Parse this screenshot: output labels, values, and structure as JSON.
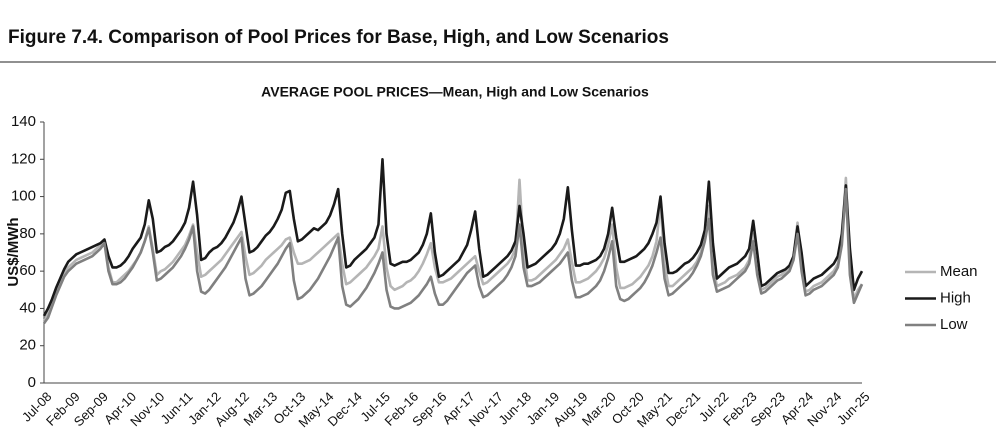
{
  "header": {
    "title": "Figure 7.4. Comparison of Pool Prices for Base, High, and Low Scenarios"
  },
  "chart_data": {
    "type": "line",
    "title": "AVERAGE POOL PRICES—Mean, High and Low Scenarios",
    "y_label": "US$/MWh",
    "categories": [
      "Jul-08",
      null,
      null,
      null,
      null,
      null,
      null,
      "Feb-09",
      null,
      null,
      null,
      null,
      null,
      null,
      "Sep-09",
      null,
      null,
      null,
      null,
      null,
      null,
      "Apr-10",
      null,
      null,
      null,
      null,
      null,
      null,
      "Nov-10",
      null,
      null,
      null,
      null,
      null,
      null,
      "Jun-11",
      null,
      null,
      null,
      null,
      null,
      null,
      "Jan-12",
      null,
      null,
      null,
      null,
      null,
      null,
      "Aug-12",
      null,
      null,
      null,
      null,
      null,
      null,
      "Mar-13",
      null,
      null,
      null,
      null,
      null,
      null,
      "Oct-13",
      null,
      null,
      null,
      null,
      null,
      null,
      "May-14",
      null,
      null,
      null,
      null,
      null,
      null,
      "Dec-14",
      null,
      null,
      null,
      null,
      null,
      null,
      "Jul-15",
      null,
      null,
      null,
      null,
      null,
      null,
      "Feb-16",
      null,
      null,
      null,
      null,
      null,
      null,
      "Sep-16",
      null,
      null,
      null,
      null,
      null,
      null,
      "Apr-17",
      null,
      null,
      null,
      null,
      null,
      null,
      "Nov-17",
      null,
      null,
      null,
      null,
      null,
      null,
      "Jun-18",
      null,
      null,
      null,
      null,
      null,
      null,
      "Jan-19",
      null,
      null,
      null,
      null,
      null,
      null,
      "Aug-19",
      null,
      null,
      null,
      null,
      null,
      null,
      "Mar-20",
      null,
      null,
      null,
      null,
      null,
      null,
      "Oct-20",
      null,
      null,
      null,
      null,
      null,
      null,
      "May-21",
      null,
      null,
      null,
      null,
      null,
      null,
      "Dec-21",
      null,
      null,
      null,
      null,
      null,
      null,
      "Jul-22",
      null,
      null,
      null,
      null,
      null,
      null,
      "Feb-23",
      null,
      null,
      null,
      null,
      null,
      null,
      "Sep-23",
      null,
      null,
      null,
      null,
      null,
      null,
      "Apr-24",
      null,
      null,
      null,
      null,
      null,
      null,
      "Nov-24",
      null,
      null,
      null,
      null,
      null,
      null,
      "Jun-25"
    ],
    "series": [
      {
        "name": "Mean",
        "color": "#b5b5b5",
        "values": [
          33,
          37,
          43,
          49,
          54,
          59,
          62,
          64,
          66,
          67,
          68,
          69,
          70,
          72,
          74,
          76,
          62,
          54,
          54,
          56,
          58,
          60,
          63,
          66,
          70,
          76,
          84,
          72,
          58,
          60,
          61,
          63,
          65,
          68,
          71,
          74,
          79,
          85,
          70,
          57,
          58,
          60,
          62,
          64,
          66,
          69,
          72,
          75,
          78,
          81,
          68,
          58,
          59,
          61,
          63,
          66,
          68,
          70,
          72,
          74,
          77,
          78,
          70,
          64,
          64,
          65,
          66,
          68,
          70,
          72,
          74,
          76,
          78,
          80,
          64,
          53,
          54,
          56,
          58,
          60,
          62,
          65,
          68,
          72,
          84,
          62,
          52,
          50,
          51,
          52,
          54,
          55,
          57,
          60,
          64,
          69,
          75,
          62,
          54,
          54,
          55,
          56,
          58,
          60,
          62,
          64,
          66,
          68,
          60,
          53,
          54,
          56,
          58,
          60,
          62,
          64,
          67,
          72,
          109,
          72,
          55,
          55,
          56,
          58,
          60,
          62,
          64,
          66,
          69,
          72,
          77,
          65,
          54,
          54,
          55,
          56,
          58,
          60,
          63,
          67,
          74,
          85,
          62,
          51,
          51,
          52,
          53,
          55,
          57,
          60,
          63,
          68,
          76,
          97,
          64,
          52,
          52,
          54,
          56,
          58,
          60,
          62,
          65,
          70,
          80,
          95,
          62,
          52,
          53,
          54,
          56,
          57,
          58,
          60,
          62,
          66,
          80,
          62,
          50,
          51,
          53,
          55,
          57,
          58,
          60,
          62,
          68,
          86,
          62,
          49,
          50,
          52,
          53,
          54,
          56,
          58,
          60,
          64,
          76,
          110,
          62,
          45,
          50,
          53
        ]
      },
      {
        "name": "High",
        "color": "#1a1a1a",
        "values": [
          36,
          40,
          45,
          51,
          56,
          61,
          65,
          67,
          69,
          70,
          71,
          72,
          73,
          74,
          75,
          77,
          68,
          62,
          62,
          63,
          65,
          68,
          72,
          75,
          78,
          85,
          98,
          88,
          70,
          71,
          73,
          74,
          76,
          79,
          82,
          86,
          94,
          108,
          90,
          66,
          67,
          70,
          72,
          73,
          75,
          78,
          82,
          86,
          92,
          100,
          85,
          70,
          71,
          73,
          76,
          79,
          81,
          84,
          88,
          93,
          102,
          103,
          88,
          76,
          77,
          79,
          81,
          83,
          82,
          84,
          86,
          90,
          96,
          104,
          80,
          62,
          63,
          66,
          68,
          70,
          72,
          75,
          78,
          85,
          120,
          80,
          64,
          63,
          64,
          65,
          65,
          66,
          68,
          70,
          74,
          80,
          91,
          70,
          57,
          58,
          60,
          62,
          64,
          66,
          70,
          74,
          82,
          92,
          72,
          57,
          58,
          60,
          62,
          64,
          66,
          68,
          71,
          76,
          95,
          80,
          62,
          63,
          64,
          66,
          68,
          70,
          72,
          75,
          80,
          88,
          105,
          82,
          63,
          63,
          64,
          64,
          65,
          66,
          68,
          72,
          80,
          94,
          78,
          65,
          65,
          66,
          67,
          68,
          70,
          72,
          75,
          80,
          86,
          100,
          75,
          59,
          59,
          60,
          62,
          64,
          65,
          67,
          70,
          74,
          82,
          108,
          75,
          56,
          58,
          60,
          62,
          63,
          64,
          66,
          68,
          72,
          87,
          70,
          52,
          53,
          55,
          57,
          59,
          60,
          61,
          63,
          68,
          84,
          70,
          52,
          54,
          56,
          57,
          58,
          60,
          62,
          64,
          68,
          80,
          106,
          72,
          50,
          56,
          60
        ]
      },
      {
        "name": "Low",
        "color": "#808080",
        "values": [
          32,
          35,
          41,
          47,
          52,
          57,
          60,
          62,
          64,
          65,
          66,
          67,
          68,
          70,
          72,
          75,
          60,
          53,
          53,
          54,
          56,
          59,
          62,
          66,
          70,
          76,
          83,
          70,
          55,
          56,
          58,
          60,
          62,
          65,
          68,
          72,
          77,
          84,
          60,
          49,
          48,
          50,
          53,
          56,
          59,
          62,
          66,
          70,
          74,
          78,
          56,
          47,
          48,
          50,
          52,
          55,
          58,
          61,
          64,
          68,
          72,
          75,
          55,
          45,
          46,
          48,
          50,
          53,
          56,
          60,
          64,
          68,
          73,
          78,
          52,
          42,
          41,
          43,
          45,
          48,
          51,
          55,
          59,
          64,
          70,
          50,
          41,
          40,
          40,
          41,
          42,
          43,
          45,
          47,
          50,
          53,
          57,
          48,
          42,
          42,
          44,
          47,
          50,
          53,
          56,
          59,
          61,
          63,
          52,
          46,
          47,
          49,
          51,
          53,
          55,
          58,
          62,
          68,
          85,
          62,
          52,
          52,
          53,
          54,
          56,
          58,
          60,
          62,
          64,
          67,
          70,
          55,
          46,
          46,
          47,
          48,
          50,
          52,
          55,
          60,
          67,
          76,
          52,
          45,
          44,
          45,
          47,
          49,
          51,
          54,
          58,
          63,
          70,
          78,
          56,
          47,
          48,
          50,
          52,
          54,
          56,
          59,
          63,
          68,
          76,
          88,
          58,
          49,
          50,
          51,
          52,
          54,
          56,
          58,
          60,
          64,
          76,
          58,
          48,
          49,
          51,
          53,
          55,
          56,
          58,
          60,
          66,
          80,
          60,
          47,
          48,
          50,
          51,
          52,
          54,
          56,
          58,
          62,
          74,
          104,
          58,
          43,
          48,
          53
        ]
      }
    ],
    "ylim": [
      0,
      140
    ],
    "yticks": [
      0,
      20,
      40,
      60,
      80,
      100,
      120,
      140
    ],
    "grid": false,
    "legend": "right"
  }
}
